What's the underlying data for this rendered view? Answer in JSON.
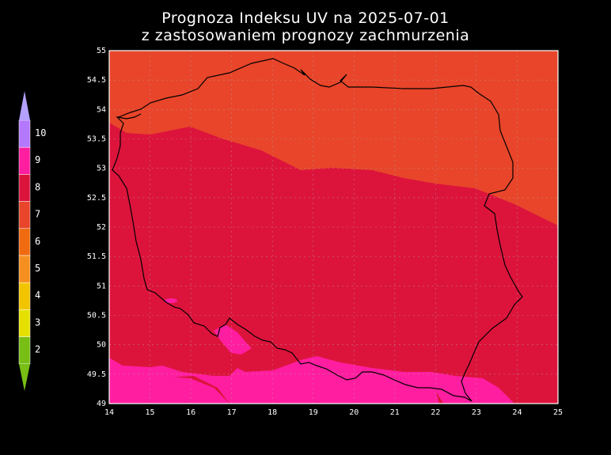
{
  "title": {
    "line1": "Prognoza Indeksu UV na 2025-07-01",
    "line2": "z zastosowaniem prognozy zachmurzenia"
  },
  "map": {
    "x_ticks": [
      "14",
      "15",
      "16",
      "17",
      "18",
      "19",
      "20",
      "21",
      "22",
      "23",
      "24",
      "25"
    ],
    "y_ticks": [
      "55",
      "54.5",
      "54",
      "53.5",
      "53",
      "52.5",
      "52",
      "51.5",
      "51",
      "50.5",
      "50",
      "49.5",
      "49"
    ],
    "lon_range": [
      14,
      25
    ],
    "lat_range": [
      49,
      55
    ]
  },
  "legend": {
    "labels": [
      "10",
      "9",
      "8",
      "7",
      "6",
      "5",
      "4",
      "3",
      "2"
    ],
    "colors": [
      "#b478ff",
      "#ff1ea0",
      "#dc143c",
      "#e8452a",
      "#f06a10",
      "#f59020",
      "#f2c400",
      "#e6e000",
      "#78be14"
    ]
  },
  "colors": {
    "uv7": "#e8452a",
    "uv8": "#dc143c",
    "uv9": "#ff1ea0",
    "background": "#000000"
  }
}
